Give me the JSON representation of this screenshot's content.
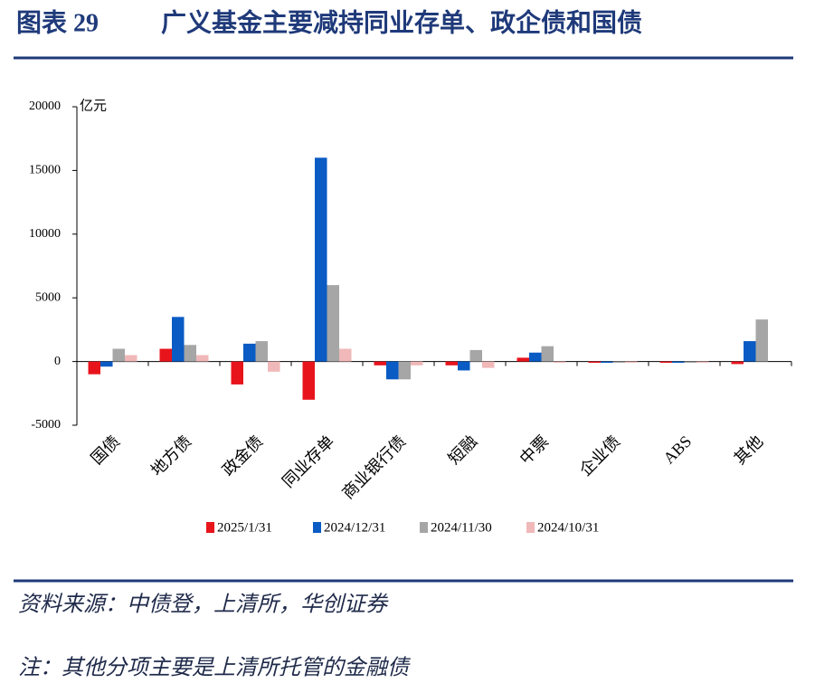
{
  "chart_data": {
    "type": "bar",
    "figure_label": "图表 29",
    "title": "广义基金主要减持同业存单、政企债和国债",
    "y_unit": "亿元",
    "categories": [
      "国债",
      "地方债",
      "政金债",
      "同业存单",
      "商业银行债",
      "短融",
      "中票",
      "企业债",
      "ABS",
      "其他"
    ],
    "series": [
      {
        "name": "2025/1/31",
        "color": "#e8141c",
        "values": [
          -1000,
          1000,
          -1800,
          -3000,
          -300,
          -300,
          300,
          -100,
          -100,
          -200
        ]
      },
      {
        "name": "2024/12/31",
        "color": "#0a5bc4",
        "values": [
          -400,
          3500,
          1400,
          16000,
          -1400,
          -700,
          700,
          -100,
          -100,
          1600
        ]
      },
      {
        "name": "2024/11/30",
        "color": "#a6a6a6",
        "values": [
          1000,
          1300,
          1600,
          6000,
          -1400,
          900,
          1200,
          -100,
          -100,
          3300
        ]
      },
      {
        "name": "2024/10/31",
        "color": "#f0b8b8",
        "values": [
          500,
          500,
          -800,
          1000,
          -300,
          -500,
          -100,
          -100,
          -100,
          0
        ]
      }
    ],
    "ylim": [
      -5000,
      20000
    ],
    "yticks": [
      -5000,
      0,
      5000,
      10000,
      15000,
      20000
    ],
    "source": "资料来源：中债登，上清所，华创证券",
    "note": "注：其他分项主要是上清所托管的金融债"
  }
}
